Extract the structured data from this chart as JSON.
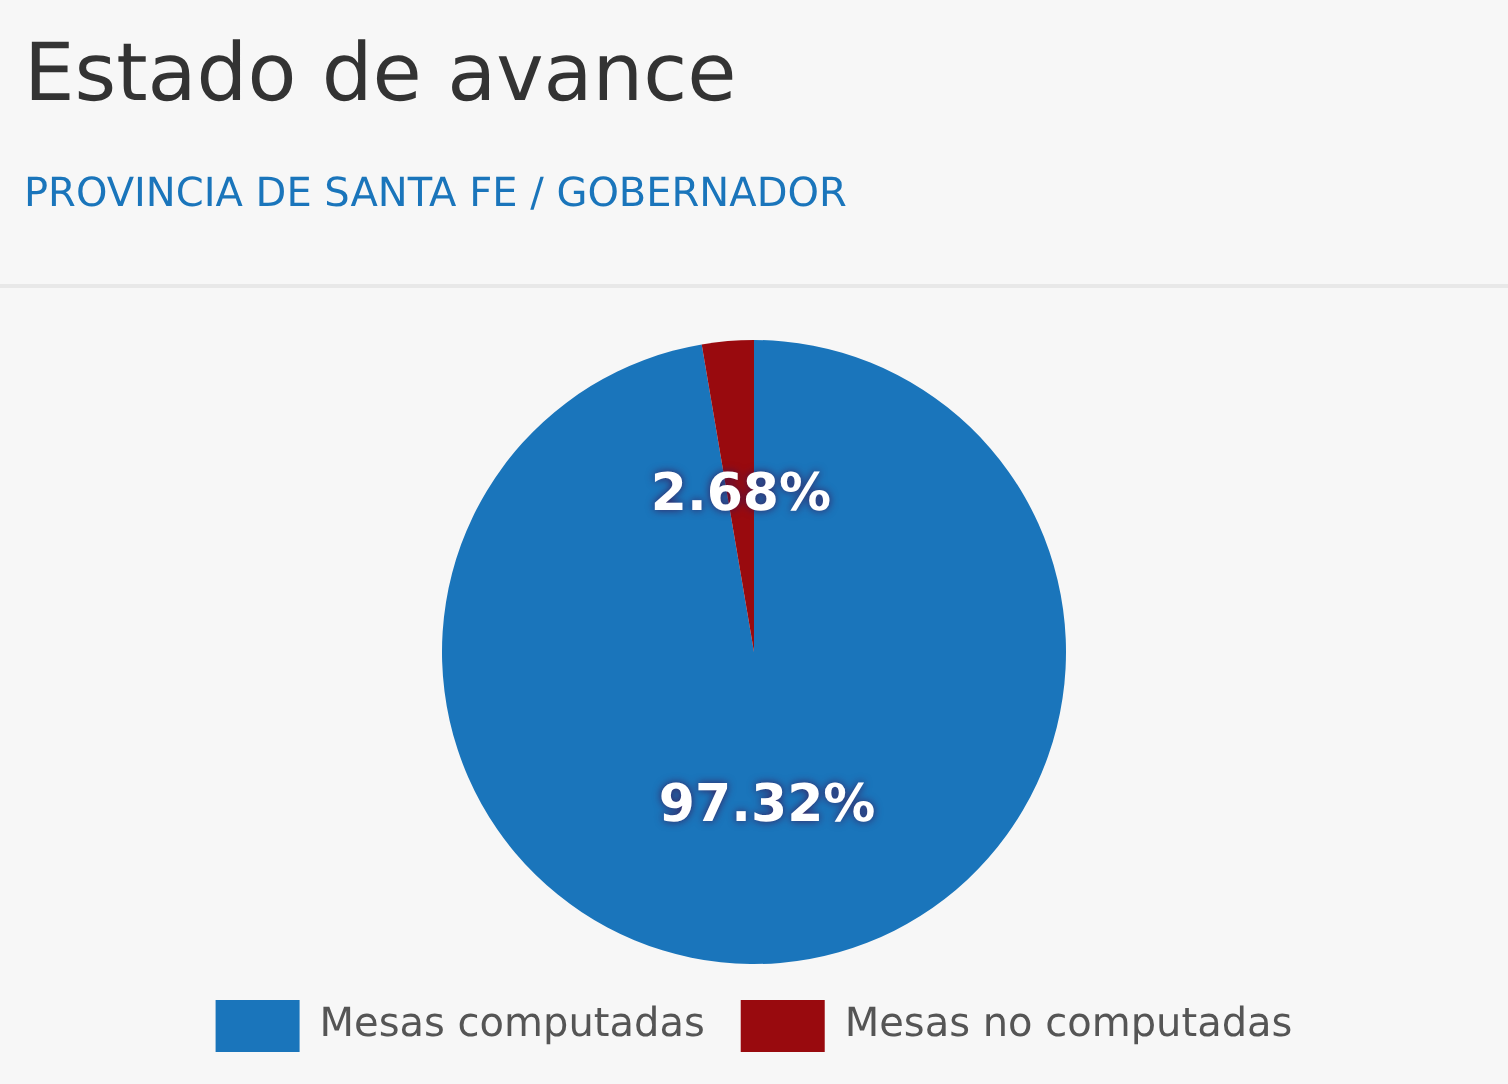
{
  "chart_data": {
    "type": "pie",
    "title": "Estado de avance",
    "subtitle": "PROVINCIA DE SANTA FE / GOBERNADOR",
    "categories": [
      "Mesas computadas",
      "Mesas no computadas"
    ],
    "values": [
      97.32,
      2.68
    ],
    "colors": [
      "#1a75bb",
      "#990a0e"
    ],
    "value_labels": [
      "97.32%",
      "2.68%"
    ],
    "legend": "bottom"
  }
}
